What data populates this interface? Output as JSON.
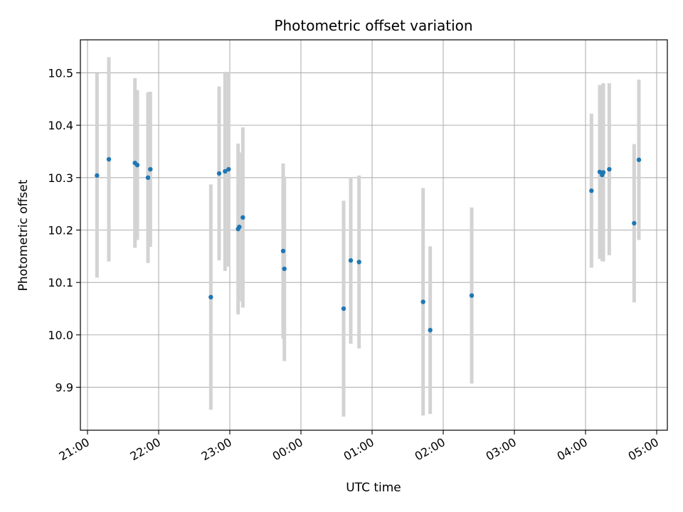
{
  "chart_data": {
    "type": "scatter",
    "title": "Photometric offset variation",
    "xlabel": "UTC time",
    "ylabel": "Photometric offset",
    "grid": true,
    "xlim": [
      "2000-01-01T20:54",
      "2000-01-02T05:09"
    ],
    "ylim": [
      9.818,
      10.563
    ],
    "x_ticks": [
      {
        "t": "2000-01-01T21:00",
        "label": "21:00"
      },
      {
        "t": "2000-01-01T22:00",
        "label": "22:00"
      },
      {
        "t": "2000-01-01T23:00",
        "label": "23:00"
      },
      {
        "t": "2000-01-02T00:00",
        "label": "00:00"
      },
      {
        "t": "2000-01-02T01:00",
        "label": "01:00"
      },
      {
        "t": "2000-01-02T02:00",
        "label": "02:00"
      },
      {
        "t": "2000-01-02T03:00",
        "label": "03:00"
      },
      {
        "t": "2000-01-02T04:00",
        "label": "04:00"
      },
      {
        "t": "2000-01-02T05:00",
        "label": "05:00"
      }
    ],
    "y_ticks": [
      {
        "v": 9.9,
        "label": "9.9"
      },
      {
        "v": 10.0,
        "label": "10.0"
      },
      {
        "v": 10.1,
        "label": "10.1"
      },
      {
        "v": 10.2,
        "label": "10.2"
      },
      {
        "v": 10.3,
        "label": "10.3"
      },
      {
        "v": 10.4,
        "label": "10.4"
      },
      {
        "v": 10.5,
        "label": "10.5"
      }
    ],
    "marker_color": "#1f77b4",
    "errorbar_color": "#d3d3d3",
    "points": [
      {
        "t": "2000-01-01T21:08",
        "y": 10.304,
        "err": 0.195
      },
      {
        "t": "2000-01-01T21:18",
        "y": 10.335,
        "err": 0.195
      },
      {
        "t": "2000-01-01T21:40",
        "y": 10.328,
        "err": 0.162
      },
      {
        "t": "2000-01-01T21:42",
        "y": 10.324,
        "err": 0.143
      },
      {
        "t": "2000-01-01T21:51",
        "y": 10.3,
        "err": 0.163
      },
      {
        "t": "2000-01-01T21:53",
        "y": 10.316,
        "err": 0.148
      },
      {
        "t": "2000-01-01T22:44",
        "y": 10.072,
        "err": 0.215
      },
      {
        "t": "2000-01-01T22:51",
        "y": 10.308,
        "err": 0.166
      },
      {
        "t": "2000-01-01T22:56",
        "y": 10.312,
        "err": 0.19
      },
      {
        "t": "2000-01-01T22:59",
        "y": 10.316,
        "err": 0.186
      },
      {
        "t": "2000-01-01T23:07",
        "y": 10.202,
        "err": 0.163
      },
      {
        "t": "2000-01-01T23:08",
        "y": 10.206,
        "err": 0.142
      },
      {
        "t": "2000-01-01T23:11",
        "y": 10.224,
        "err": 0.172
      },
      {
        "t": "2000-01-01T23:45",
        "y": 10.16,
        "err": 0.167
      },
      {
        "t": "2000-01-01T23:46",
        "y": 10.126,
        "err": 0.176
      },
      {
        "t": "2000-01-02T00:36",
        "y": 10.05,
        "err": 0.206
      },
      {
        "t": "2000-01-02T00:42",
        "y": 10.142,
        "err": 0.159
      },
      {
        "t": "2000-01-02T00:49",
        "y": 10.139,
        "err": 0.165
      },
      {
        "t": "2000-01-02T01:43",
        "y": 10.063,
        "err": 0.217
      },
      {
        "t": "2000-01-02T01:49",
        "y": 10.009,
        "err": 0.16
      },
      {
        "t": "2000-01-02T02:24",
        "y": 10.075,
        "err": 0.168
      },
      {
        "t": "2000-01-02T04:05",
        "y": 10.275,
        "err": 0.147
      },
      {
        "t": "2000-01-02T04:12",
        "y": 10.311,
        "err": 0.166
      },
      {
        "t": "2000-01-02T04:14",
        "y": 10.305,
        "err": 0.164
      },
      {
        "t": "2000-01-02T04:15",
        "y": 10.31,
        "err": 0.17
      },
      {
        "t": "2000-01-02T04:20",
        "y": 10.316,
        "err": 0.164
      },
      {
        "t": "2000-01-02T04:41",
        "y": 10.213,
        "err": 0.151
      },
      {
        "t": "2000-01-02T04:45",
        "y": 10.334,
        "err": 0.153
      }
    ]
  }
}
